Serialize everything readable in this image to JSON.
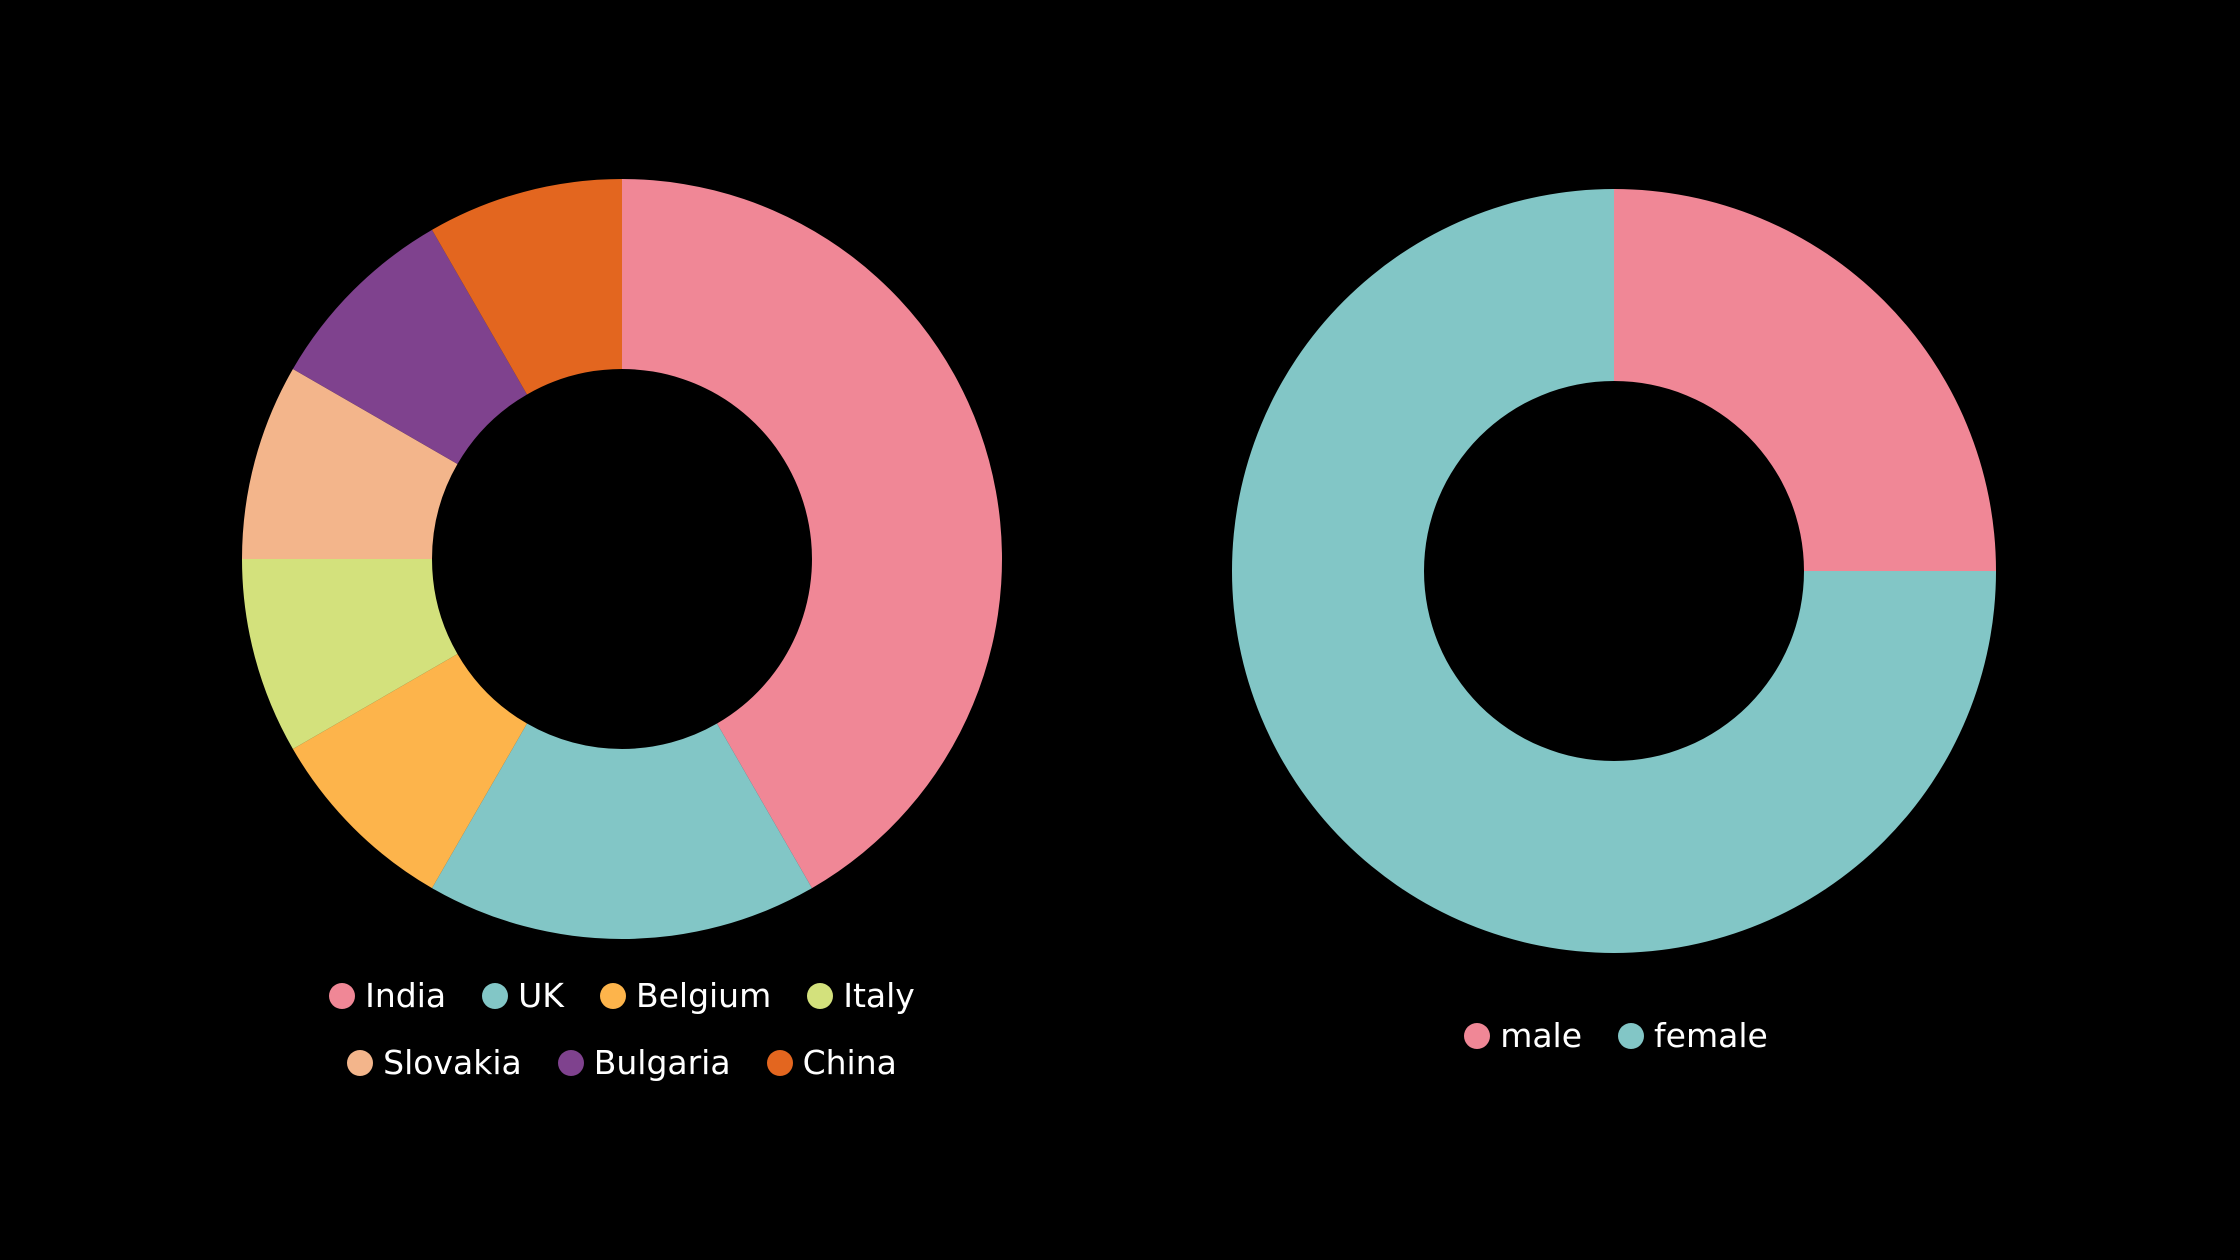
{
  "chart_data": [
    {
      "type": "pie",
      "donut": true,
      "categories": [
        "India",
        "UK",
        "Belgium",
        "Italy",
        "Slovakia",
        "Bulgaria",
        "China"
      ],
      "values": [
        5,
        2,
        1,
        1,
        1,
        1,
        1
      ],
      "colors": [
        "#f08796",
        "#82c6c6",
        "#fdb44b",
        "#d3e17c",
        "#f3b58b",
        "#7f428e",
        "#e3661f"
      ],
      "legend_position": "bottom"
    },
    {
      "type": "pie",
      "donut": true,
      "categories": [
        "male",
        "female"
      ],
      "values": [
        1,
        3
      ],
      "colors": [
        "#f08796",
        "#82c6c6"
      ],
      "legend_position": "bottom"
    }
  ]
}
